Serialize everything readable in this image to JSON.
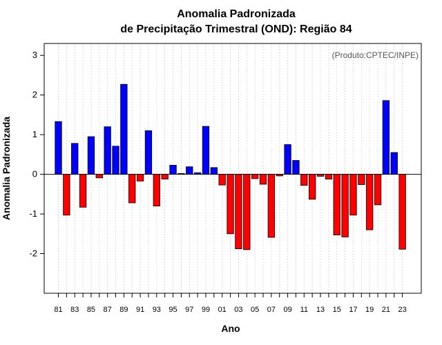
{
  "chart_data": {
    "type": "bar",
    "title_line1": "Anomalia Padronizada",
    "title_line2": "de Precipitação Trimestral (OND): Região 84",
    "xlabel": "Ano",
    "ylabel": "Anomalia Padronizada",
    "credit": "(Produto:CPTEC/INPE)",
    "ylim": [
      -3,
      3.3
    ],
    "yticks": [
      -2,
      -1,
      0,
      1,
      2,
      3
    ],
    "ytick_labels": [
      "-2",
      "-1",
      "0",
      "1",
      "2",
      "3"
    ],
    "categories": [
      "81",
      "82",
      "83",
      "84",
      "85",
      "86",
      "87",
      "88",
      "89",
      "90",
      "91",
      "92",
      "93",
      "94",
      "95",
      "96",
      "97",
      "98",
      "99",
      "00",
      "01",
      "02",
      "03",
      "04",
      "05",
      "06",
      "07",
      "08",
      "09",
      "10",
      "11",
      "12",
      "13",
      "14",
      "15",
      "16",
      "17",
      "18",
      "19",
      "20",
      "21",
      "22",
      "23"
    ],
    "xtick_labels": [
      "81",
      "83",
      "85",
      "87",
      "89",
      "91",
      "93",
      "95",
      "97",
      "99",
      "01",
      "03",
      "05",
      "07",
      "09",
      "11",
      "13",
      "15",
      "17",
      "19",
      "21",
      "23"
    ],
    "values": [
      1.33,
      -1.03,
      0.78,
      -0.83,
      0.95,
      -0.09,
      1.2,
      0.71,
      2.27,
      -0.72,
      -0.17,
      1.1,
      -0.8,
      -0.12,
      0.23,
      0.02,
      0.19,
      0.04,
      1.21,
      0.17,
      -0.27,
      -1.5,
      -1.88,
      -1.9,
      -0.11,
      -0.25,
      -1.59,
      -0.04,
      0.75,
      0.35,
      -0.28,
      -0.63,
      -0.05,
      -0.12,
      -1.53,
      -1.58,
      -1.03,
      -0.26,
      -1.4,
      -0.77,
      1.86,
      0.55,
      -1.89
    ],
    "positive_color": "#0000ff",
    "negative_color": "#ff0000"
  }
}
